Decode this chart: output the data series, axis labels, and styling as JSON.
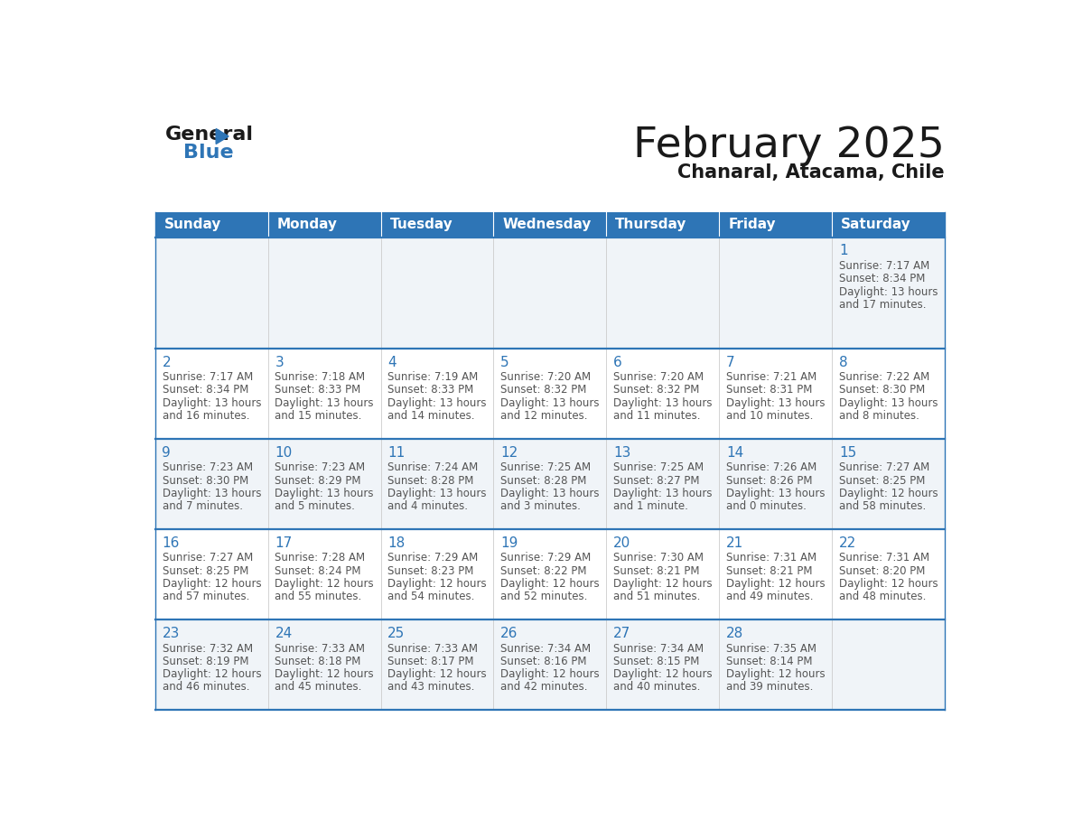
{
  "title": "February 2025",
  "subtitle": "Chanaral, Atacama, Chile",
  "header_color": "#2E75B6",
  "header_text_color": "#FFFFFF",
  "cell_bg_odd": "#FFFFFF",
  "cell_bg_even": "#F0F4F8",
  "border_color": "#2E75B6",
  "text_color": "#333333",
  "day_number_color": "#2E75B6",
  "cell_text_color": "#555555",
  "days_of_week": [
    "Sunday",
    "Monday",
    "Tuesday",
    "Wednesday",
    "Thursday",
    "Friday",
    "Saturday"
  ],
  "calendar_data": [
    [
      null,
      null,
      null,
      null,
      null,
      null,
      {
        "day": 1,
        "sunrise": "7:17 AM",
        "sunset": "8:34 PM",
        "daylight": "13 hours",
        "daylight2": "and 17 minutes."
      }
    ],
    [
      {
        "day": 2,
        "sunrise": "7:17 AM",
        "sunset": "8:34 PM",
        "daylight": "13 hours",
        "daylight2": "and 16 minutes."
      },
      {
        "day": 3,
        "sunrise": "7:18 AM",
        "sunset": "8:33 PM",
        "daylight": "13 hours",
        "daylight2": "and 15 minutes."
      },
      {
        "day": 4,
        "sunrise": "7:19 AM",
        "sunset": "8:33 PM",
        "daylight": "13 hours",
        "daylight2": "and 14 minutes."
      },
      {
        "day": 5,
        "sunrise": "7:20 AM",
        "sunset": "8:32 PM",
        "daylight": "13 hours",
        "daylight2": "and 12 minutes."
      },
      {
        "day": 6,
        "sunrise": "7:20 AM",
        "sunset": "8:32 PM",
        "daylight": "13 hours",
        "daylight2": "and 11 minutes."
      },
      {
        "day": 7,
        "sunrise": "7:21 AM",
        "sunset": "8:31 PM",
        "daylight": "13 hours",
        "daylight2": "and 10 minutes."
      },
      {
        "day": 8,
        "sunrise": "7:22 AM",
        "sunset": "8:30 PM",
        "daylight": "13 hours",
        "daylight2": "and 8 minutes."
      }
    ],
    [
      {
        "day": 9,
        "sunrise": "7:23 AM",
        "sunset": "8:30 PM",
        "daylight": "13 hours",
        "daylight2": "and 7 minutes."
      },
      {
        "day": 10,
        "sunrise": "7:23 AM",
        "sunset": "8:29 PM",
        "daylight": "13 hours",
        "daylight2": "and 5 minutes."
      },
      {
        "day": 11,
        "sunrise": "7:24 AM",
        "sunset": "8:28 PM",
        "daylight": "13 hours",
        "daylight2": "and 4 minutes."
      },
      {
        "day": 12,
        "sunrise": "7:25 AM",
        "sunset": "8:28 PM",
        "daylight": "13 hours",
        "daylight2": "and 3 minutes."
      },
      {
        "day": 13,
        "sunrise": "7:25 AM",
        "sunset": "8:27 PM",
        "daylight": "13 hours",
        "daylight2": "and 1 minute."
      },
      {
        "day": 14,
        "sunrise": "7:26 AM",
        "sunset": "8:26 PM",
        "daylight": "13 hours",
        "daylight2": "and 0 minutes."
      },
      {
        "day": 15,
        "sunrise": "7:27 AM",
        "sunset": "8:25 PM",
        "daylight": "12 hours",
        "daylight2": "and 58 minutes."
      }
    ],
    [
      {
        "day": 16,
        "sunrise": "7:27 AM",
        "sunset": "8:25 PM",
        "daylight": "12 hours",
        "daylight2": "and 57 minutes."
      },
      {
        "day": 17,
        "sunrise": "7:28 AM",
        "sunset": "8:24 PM",
        "daylight": "12 hours",
        "daylight2": "and 55 minutes."
      },
      {
        "day": 18,
        "sunrise": "7:29 AM",
        "sunset": "8:23 PM",
        "daylight": "12 hours",
        "daylight2": "and 54 minutes."
      },
      {
        "day": 19,
        "sunrise": "7:29 AM",
        "sunset": "8:22 PM",
        "daylight": "12 hours",
        "daylight2": "and 52 minutes."
      },
      {
        "day": 20,
        "sunrise": "7:30 AM",
        "sunset": "8:21 PM",
        "daylight": "12 hours",
        "daylight2": "and 51 minutes."
      },
      {
        "day": 21,
        "sunrise": "7:31 AM",
        "sunset": "8:21 PM",
        "daylight": "12 hours",
        "daylight2": "and 49 minutes."
      },
      {
        "day": 22,
        "sunrise": "7:31 AM",
        "sunset": "8:20 PM",
        "daylight": "12 hours",
        "daylight2": "and 48 minutes."
      }
    ],
    [
      {
        "day": 23,
        "sunrise": "7:32 AM",
        "sunset": "8:19 PM",
        "daylight": "12 hours",
        "daylight2": "and 46 minutes."
      },
      {
        "day": 24,
        "sunrise": "7:33 AM",
        "sunset": "8:18 PM",
        "daylight": "12 hours",
        "daylight2": "and 45 minutes."
      },
      {
        "day": 25,
        "sunrise": "7:33 AM",
        "sunset": "8:17 PM",
        "daylight": "12 hours",
        "daylight2": "and 43 minutes."
      },
      {
        "day": 26,
        "sunrise": "7:34 AM",
        "sunset": "8:16 PM",
        "daylight": "12 hours",
        "daylight2": "and 42 minutes."
      },
      {
        "day": 27,
        "sunrise": "7:34 AM",
        "sunset": "8:15 PM",
        "daylight": "12 hours",
        "daylight2": "and 40 minutes."
      },
      {
        "day": 28,
        "sunrise": "7:35 AM",
        "sunset": "8:14 PM",
        "daylight": "12 hours",
        "daylight2": "and 39 minutes."
      },
      null
    ]
  ],
  "logo_text_general": "General",
  "logo_text_blue": "Blue",
  "logo_color_general": "#1a1a1a",
  "logo_color_blue": "#2E75B6",
  "row_heights": [
    1.6,
    1.3,
    1.3,
    1.3,
    1.3
  ]
}
